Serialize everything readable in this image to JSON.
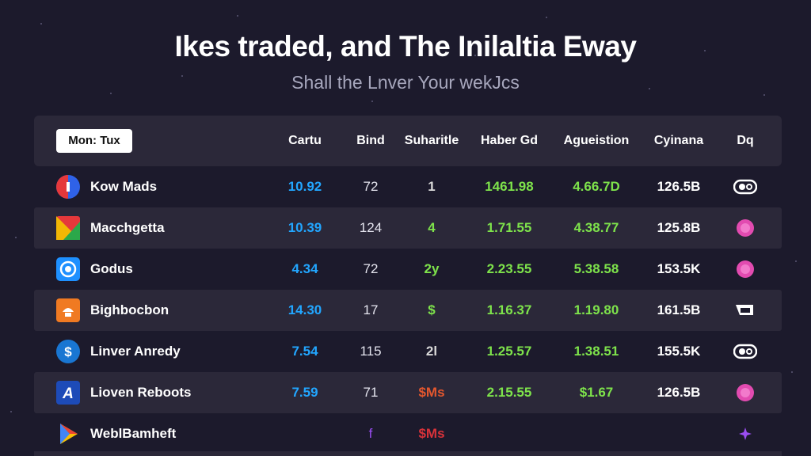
{
  "header": {
    "title": "Ikes traded, and The Inilaltia Eway",
    "subtitle": "Shall the Lnver Your wekJcs"
  },
  "table": {
    "filter_chip": "Mon: Tux",
    "columns": [
      "Cartu",
      "Bind",
      "Suharitle",
      "Haber Gd",
      "Agueistion",
      "Cyinana",
      "Dq"
    ],
    "rows": [
      {
        "name": "Kow Mads",
        "logo": "red-blue-circle-logo",
        "c1": "10.92",
        "c2": "72",
        "c3": "1",
        "c3_color": "#d9d9d9",
        "c4": "1461.98",
        "c5": "4.66.7D",
        "c6": "126.5B",
        "badge": "toggle-eye-icon"
      },
      {
        "name": "Macchgetta",
        "logo": "multicolor-square-logo",
        "c1": "10.39",
        "c2": "124",
        "c3": "4",
        "c3_color": "#7ee34b",
        "c4": "1.71.55",
        "c5": "4.38.77",
        "c6": "125.8B",
        "badge": "pink-orb-icon"
      },
      {
        "name": "Godus",
        "logo": "blue-globe-logo",
        "c1": "4.34",
        "c2": "72",
        "c3": "2y",
        "c3_color": "#7ee34b",
        "c4": "2.23.55",
        "c5": "5.38.58",
        "c6": "153.5K",
        "badge": "pink-orb-icon"
      },
      {
        "name": "Bighbocbon",
        "logo": "orange-square-logo",
        "c1": "14.30",
        "c2": "17",
        "c3": "$",
        "c3_color": "#7ee34b",
        "c4": "1.16.37",
        "c5": "1.19.80",
        "c6": "161.5B",
        "badge": "cup-icon"
      },
      {
        "name": "Linver Anredy",
        "logo": "blue-dollar-logo",
        "c1": "7.54",
        "c2": "115",
        "c3": "2l",
        "c3_color": "#d9d9d9",
        "c4": "1.25.57",
        "c5": "1.38.51",
        "c6": "155.5K",
        "badge": "toggle-eye-icon"
      },
      {
        "name": "Lioven Reboots",
        "logo": "blue-a-logo",
        "c1": "7.59",
        "c2": "71",
        "c3": "$Ms",
        "c3_color": "#e4572e",
        "c4": "2.15.55",
        "c5": "$1.67",
        "c6": "126.5B",
        "badge": "pink-orb-icon"
      },
      {
        "name": "WeblBamheft",
        "logo": "play-triangle-logo",
        "c1": "",
        "c2": "f",
        "c2_color": "#9a4df2",
        "c3": "$Ms",
        "c3_color": "#d8323a",
        "c4": "",
        "c5": "",
        "c6": "",
        "badge": "purple-star-icon"
      }
    ]
  },
  "colors": {
    "background": "#1c1a2c",
    "panel": "#2b2839",
    "accent_blue": "#22a6ff",
    "accent_green": "#7ee34b",
    "accent_pink": "#e24bb0"
  }
}
